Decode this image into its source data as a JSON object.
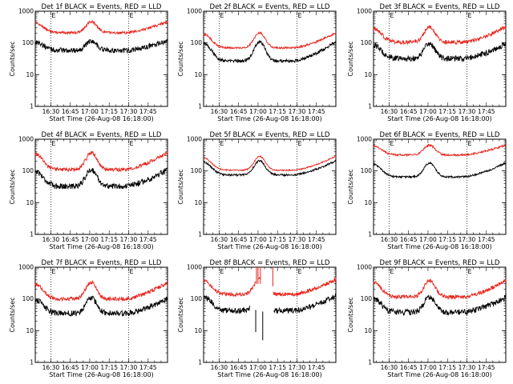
{
  "chart_data": [
    {
      "type": "line",
      "title": "Det 1f BLACK = Events, RED = LLD",
      "xlabel": "Start Time (26-Aug-08 16:18:00)",
      "ylabel": "Counts/sec",
      "xlim": [
        16.3,
        18.0
      ],
      "ylim": [
        1,
        1000
      ],
      "yscale": "log",
      "grid": false,
      "x_ticks": [
        "16:30",
        "16:45",
        "17:00",
        "17:15",
        "17:30",
        "17:45"
      ],
      "y_ticks": [
        "1",
        "10",
        "100",
        "1000"
      ],
      "marker_label": "E",
      "marker_times": [
        16.5,
        17.5
      ],
      "series": [
        {
          "name": "BLACK = Events",
          "color": "#000000",
          "base": 58,
          "peak": 115,
          "noise": 0.08,
          "gaps": []
        },
        {
          "name": "RED = LLD",
          "color": "#e8241c",
          "base": 210,
          "peak": 470,
          "noise": 0.04,
          "gaps": []
        }
      ]
    },
    {
      "type": "line",
      "title": "Det 2f BLACK = Events, RED = LLD",
      "xlabel": "Start Time (26-Aug-08 16:18:00)",
      "ylabel": "Counts/sec",
      "xlim": [
        16.3,
        18.0
      ],
      "ylim": [
        1,
        1000
      ],
      "yscale": "log",
      "grid": false,
      "x_ticks": [
        "16:30",
        "16:45",
        "17:00",
        "17:15",
        "17:30",
        "17:45"
      ],
      "y_ticks": [
        "1",
        "10",
        "100",
        "1000"
      ],
      "marker_label": "E",
      "marker_times": [
        16.5,
        17.5
      ],
      "series": [
        {
          "name": "BLACK = Events",
          "color": "#000000",
          "base": 27,
          "peak": 110,
          "noise": 0.05,
          "gaps": []
        },
        {
          "name": "RED = LLD",
          "color": "#e8241c",
          "base": 70,
          "peak": 210,
          "noise": 0.03,
          "gaps": []
        }
      ]
    },
    {
      "type": "line",
      "title": "Det 3f BLACK = Events, RED = LLD",
      "xlabel": "Start Time (26-Aug-08 16:18:00)",
      "ylabel": "Counts/sec",
      "xlim": [
        16.3,
        18.0
      ],
      "ylim": [
        1,
        1000
      ],
      "yscale": "log",
      "grid": false,
      "x_ticks": [
        "16:30",
        "16:45",
        "17:00",
        "17:15",
        "17:30",
        "17:45"
      ],
      "y_ticks": [
        "1",
        "10",
        "100",
        "1000"
      ],
      "marker_label": "E",
      "marker_times": [
        16.5,
        17.5
      ],
      "series": [
        {
          "name": "BLACK = Events",
          "color": "#000000",
          "base": 32,
          "peak": 95,
          "noise": 0.09,
          "gaps": []
        },
        {
          "name": "RED = LLD",
          "color": "#e8241c",
          "base": 105,
          "peak": 320,
          "noise": 0.06,
          "gaps": []
        }
      ]
    },
    {
      "type": "line",
      "title": "Det 4f BLACK = Events, RED = LLD",
      "xlabel": "Start Time (26-Aug-08 16:18:00)",
      "ylabel": "Counts/sec",
      "xlim": [
        16.3,
        18.0
      ],
      "ylim": [
        1,
        1000
      ],
      "yscale": "log",
      "grid": false,
      "x_ticks": [
        "16:30",
        "16:45",
        "17:00",
        "17:15",
        "17:30",
        "17:45"
      ],
      "y_ticks": [
        "1",
        "10",
        "100",
        "1000"
      ],
      "marker_label": "E",
      "marker_times": [
        16.5,
        17.5
      ],
      "series": [
        {
          "name": "BLACK = Events",
          "color": "#000000",
          "base": 33,
          "peak": 110,
          "noise": 0.09,
          "gaps": []
        },
        {
          "name": "RED = LLD",
          "color": "#e8241c",
          "base": 110,
          "peak": 380,
          "noise": 0.06,
          "gaps": []
        }
      ]
    },
    {
      "type": "line",
      "title": "Det 5f BLACK = Events, RED = LLD",
      "xlabel": "Start Time (26-Aug-08 16:18:00)",
      "ylabel": "Counts/sec",
      "xlim": [
        16.3,
        18.0
      ],
      "ylim": [
        1,
        1000
      ],
      "yscale": "log",
      "grid": false,
      "x_ticks": [
        "16:30",
        "16:45",
        "17:00",
        "17:15",
        "17:30",
        "17:45"
      ],
      "y_ticks": [
        "1",
        "10",
        "100",
        "1000"
      ],
      "marker_label": "E",
      "marker_times": [
        16.5,
        17.5
      ],
      "series": [
        {
          "name": "BLACK = Events",
          "color": "#000000",
          "base": 75,
          "peak": 210,
          "noise": 0.03,
          "gaps": []
        },
        {
          "name": "RED = LLD",
          "color": "#e8241c",
          "base": 105,
          "peak": 290,
          "noise": 0.02,
          "gaps": []
        }
      ]
    },
    {
      "type": "line",
      "title": "Det 6f BLACK = Events, RED = LLD",
      "xlabel": "Start Time (26-Aug-08 16:18:00)",
      "ylabel": "Counts/sec",
      "xlim": [
        16.3,
        18.0
      ],
      "ylim": [
        1,
        1000
      ],
      "yscale": "log",
      "grid": false,
      "x_ticks": [
        "16:30",
        "16:45",
        "17:00",
        "17:15",
        "17:30",
        "17:45"
      ],
      "y_ticks": [
        "1",
        "10",
        "100",
        "1000"
      ],
      "marker_label": "E",
      "marker_times": [
        16.5,
        17.5
      ],
      "series": [
        {
          "name": "BLACK = Events",
          "color": "#000000",
          "base": 65,
          "peak": 180,
          "noise": 0.03,
          "gaps": []
        },
        {
          "name": "RED = LLD",
          "color": "#e8241c",
          "base": 320,
          "peak": 650,
          "noise": 0.03,
          "gaps": []
        }
      ]
    },
    {
      "type": "line",
      "title": "Det 7f BLACK = Events, RED = LLD",
      "xlabel": "Start Time (26-Aug-08 16:18:00)",
      "ylabel": "Counts/sec",
      "xlim": [
        16.3,
        18.0
      ],
      "ylim": [
        1,
        1000
      ],
      "yscale": "log",
      "grid": false,
      "x_ticks": [
        "16:30",
        "16:45",
        "17:00",
        "17:15",
        "17:30",
        "17:45"
      ],
      "y_ticks": [
        "1",
        "10",
        "100",
        "1000"
      ],
      "marker_label": "E",
      "marker_times": [
        16.5,
        17.5
      ],
      "series": [
        {
          "name": "BLACK = Events",
          "color": "#000000",
          "base": 35,
          "peak": 105,
          "noise": 0.09,
          "gaps": []
        },
        {
          "name": "RED = LLD",
          "color": "#e8241c",
          "base": 100,
          "peak": 330,
          "noise": 0.06,
          "gaps": []
        }
      ]
    },
    {
      "type": "line",
      "title": "Det 8f BLACK = Events, RED = LLD",
      "xlabel": "Start Time (26-Aug-08 16:18:00)",
      "ylabel": "Counts/sec",
      "xlim": [
        16.3,
        18.0
      ],
      "ylim": [
        1,
        1000
      ],
      "yscale": "log",
      "grid": false,
      "x_ticks": [
        "16:30",
        "16:45",
        "17:00",
        "17:15",
        "17:30",
        "17:45"
      ],
      "y_ticks": [
        "1",
        "10",
        "100",
        "1000"
      ],
      "marker_label": "E",
      "marker_times": [
        16.5,
        17.5
      ],
      "series": [
        {
          "name": "BLACK = Events",
          "color": "#000000",
          "base": 42,
          "peak": 130,
          "noise": 0.09,
          "gaps": [
            [
              16.9,
              17.2
            ]
          ]
        },
        {
          "name": "RED = LLD",
          "color": "#e8241c",
          "base": 140,
          "peak": 420,
          "noise": 0.06,
          "gaps": [
            [
              16.98,
              17.0
            ],
            [
              17.03,
              17.19
            ]
          ]
        }
      ]
    },
    {
      "type": "line",
      "title": "Det 9f BLACK = Events, RED = LLD",
      "xlabel": "Start Time (26-Aug-08 16:18:00)",
      "ylabel": "Counts/sec",
      "xlim": [
        16.3,
        18.0
      ],
      "ylim": [
        1,
        1000
      ],
      "yscale": "log",
      "grid": false,
      "x_ticks": [
        "16:30",
        "16:45",
        "17:00",
        "17:15",
        "17:30",
        "17:45"
      ],
      "y_ticks": [
        "1",
        "10",
        "100",
        "1000"
      ],
      "marker_label": "E",
      "marker_times": [
        16.5,
        17.5
      ],
      "series": [
        {
          "name": "BLACK = Events",
          "color": "#000000",
          "base": 38,
          "peak": 110,
          "noise": 0.09,
          "gaps": []
        },
        {
          "name": "RED = LLD",
          "color": "#e8241c",
          "base": 115,
          "peak": 380,
          "noise": 0.06,
          "gaps": []
        }
      ]
    }
  ]
}
